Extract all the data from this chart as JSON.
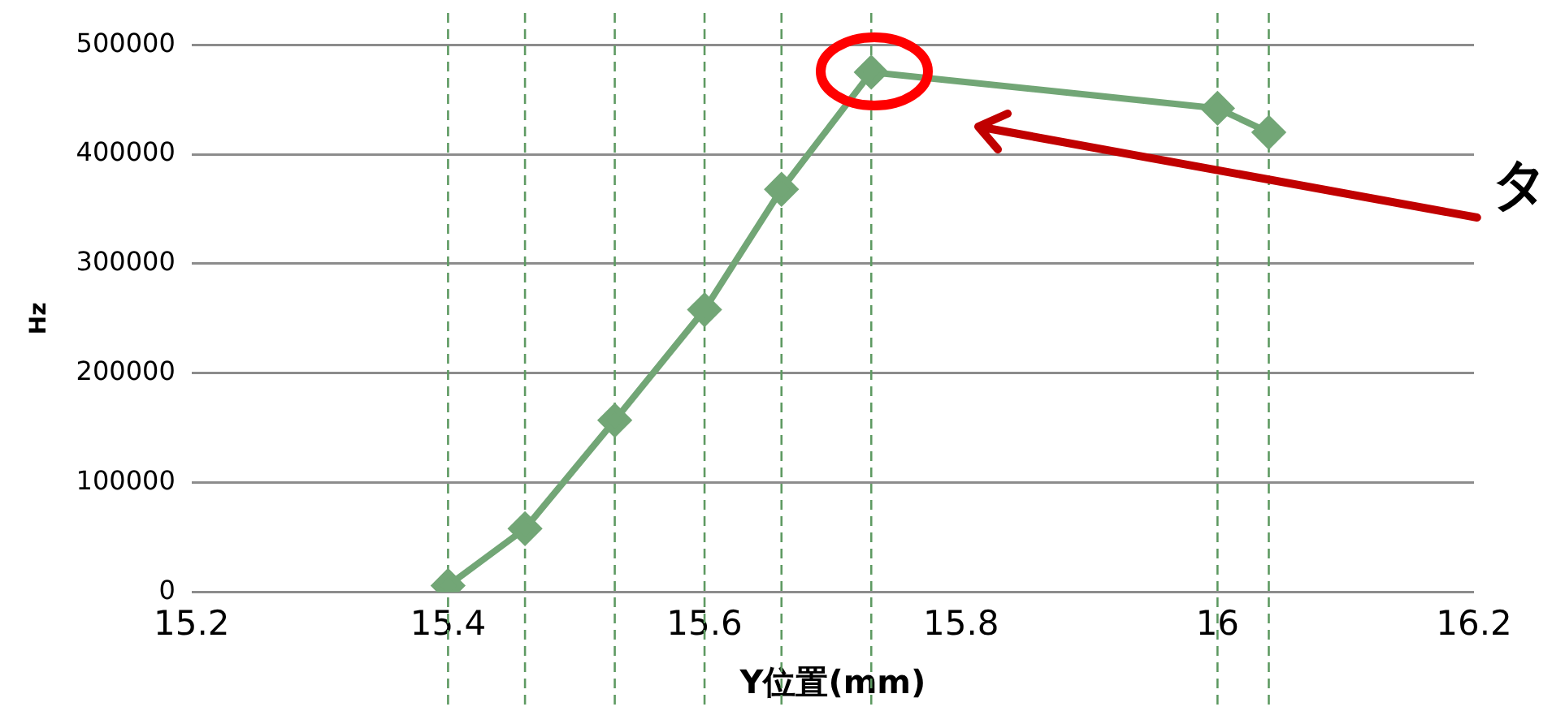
{
  "chart_data": {
    "type": "line",
    "xlabel": "Y位置(mm)",
    "ylabel": "Hz",
    "x": [
      15.4,
      15.46,
      15.53,
      15.6,
      15.66,
      15.73,
      16.0,
      16.04
    ],
    "series": [
      {
        "color": "#72a676",
        "values": [
          6000,
          58000,
          157000,
          258000,
          368000,
          475000,
          442000,
          420000
        ]
      }
    ],
    "xlim": [
      15.2,
      16.2
    ],
    "xticks": [
      15.2,
      15.4,
      15.6,
      15.8,
      16,
      16.2
    ],
    "ylim": [
      0,
      500000
    ],
    "yticks": [
      0,
      100000,
      200000,
      300000,
      400000,
      500000
    ],
    "grid": "y",
    "legend": false,
    "marker": "diamond",
    "line_style": "solid",
    "ref_lines": [
      {
        "axis": "x",
        "value": 15.4,
        "color": "#5e9a62",
        "line_style": "dashed"
      },
      {
        "axis": "x",
        "value": 15.46,
        "color": "#5e9a62",
        "line_style": "dashed"
      },
      {
        "axis": "x",
        "value": 15.53,
        "color": "#5e9a62",
        "line_style": "dashed"
      },
      {
        "axis": "x",
        "value": 15.6,
        "color": "#5e9a62",
        "line_style": "dashed"
      },
      {
        "axis": "x",
        "value": 15.66,
        "color": "#5e9a62",
        "line_style": "dashed"
      },
      {
        "axis": "x",
        "value": 15.73,
        "color": "#5e9a62",
        "line_style": "dashed"
      },
      {
        "axis": "x",
        "value": 16.0,
        "color": "#5e9a62",
        "line_style": "dashed"
      },
      {
        "axis": "x",
        "value": 16.04,
        "color": "#5e9a62",
        "line_style": "dashed"
      }
    ],
    "annotations": [
      "タ"
    ]
  }
}
